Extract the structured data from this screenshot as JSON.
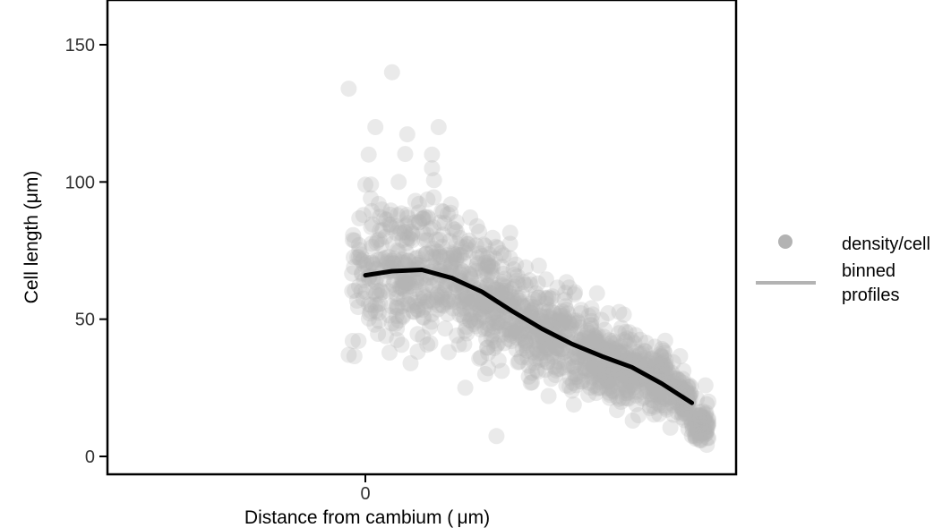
{
  "chart_data": {
    "type": "scatter",
    "title": "",
    "xlabel": "Distance from cambium ( μm)",
    "ylabel": "Cell length (μm)",
    "ylim": [
      -5,
      165
    ],
    "y_ticks": [
      0,
      50,
      100,
      150
    ],
    "x_ticks": [
      0
    ],
    "x_tick_labels": [
      "0"
    ],
    "legend": {
      "position": "right",
      "entries": [
        {
          "label": "density/cell",
          "kind": "point",
          "color": "#b3b3b3"
        },
        {
          "label": "binned profiles",
          "label_lines": [
            "binned",
            "profiles"
          ],
          "kind": "line",
          "color": "#b3b3b3"
        }
      ]
    },
    "colors": {
      "points": "#b3b3b3",
      "line": "#000000",
      "frame": "#000000"
    },
    "series": [
      {
        "type": "line",
        "x": [
          0,
          0.08,
          0.17,
          0.26,
          0.35,
          0.44,
          0.53,
          0.62,
          0.71,
          0.8,
          0.89,
          0.98
        ],
        "y": [
          66,
          67.5,
          68,
          65,
          60,
          53,
          46.5,
          41,
          36.5,
          32.5,
          26.5,
          19.5
        ]
      },
      {
        "type": "scatter",
        "note_points": "dense cloud",
        "x": [
          0.08,
          -0.05,
          0.0,
          0.01,
          0.03,
          0.1,
          0.04,
          0.22,
          0.2,
          0.2,
          0.06,
          0.12,
          -0.05,
          0.36,
          0.4,
          0.3,
          0.25,
          0.5,
          0.55,
          0.82,
          0.97,
          1.02,
          1.03
        ],
        "y": [
          140,
          134,
          99,
          110,
          120,
          100,
          92,
          120,
          110,
          105,
          80,
          70,
          37,
          30,
          35,
          25,
          38,
          27,
          22,
          15,
          10,
          8,
          12
        ]
      }
    ]
  }
}
